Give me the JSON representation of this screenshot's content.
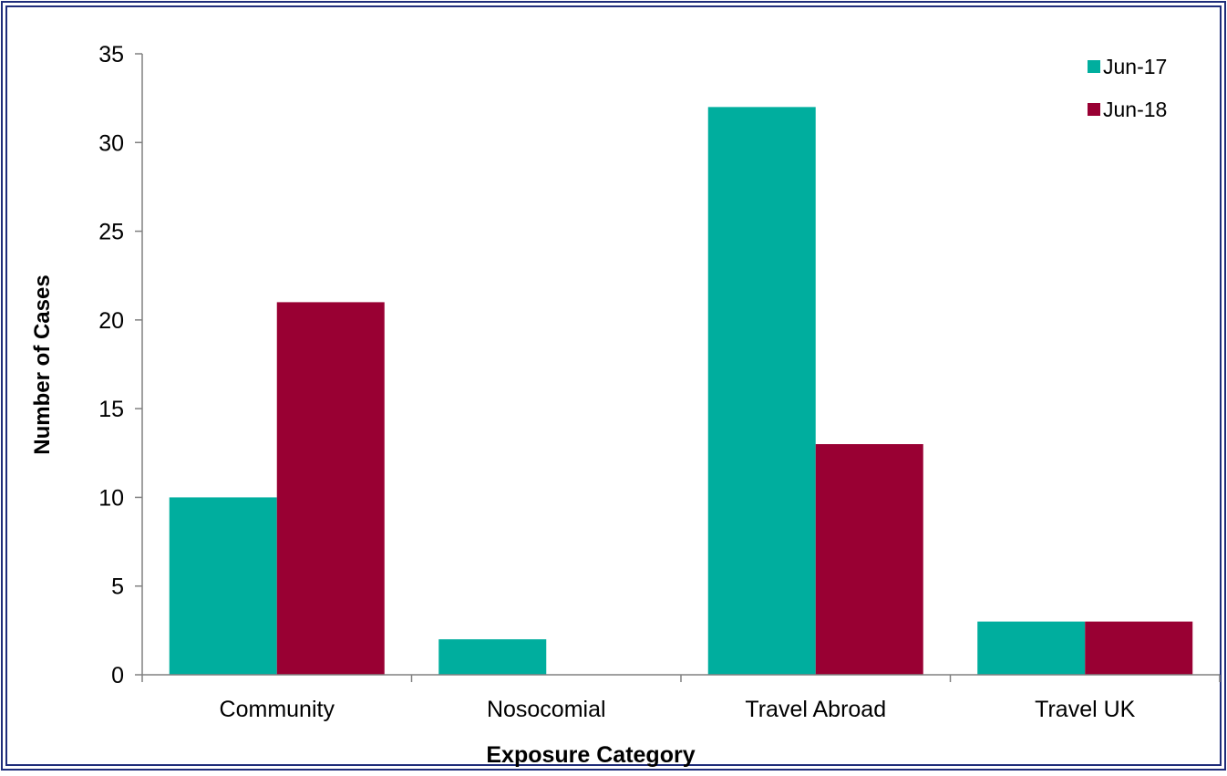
{
  "chart_data": {
    "type": "bar",
    "title": "",
    "xlabel": "Exposure Category",
    "ylabel": "Number of Cases",
    "categories": [
      "Community",
      "Nosocomial",
      "Travel Abroad",
      "Travel UK"
    ],
    "series": [
      {
        "name": "Jun-17",
        "values": [
          10,
          2,
          32,
          3
        ],
        "color": "#00ae9e"
      },
      {
        "name": "Jun-18",
        "values": [
          21,
          0,
          13,
          3
        ],
        "color": "#990033"
      }
    ],
    "ylim": [
      0,
      35
    ],
    "yticks": [
      0,
      5,
      10,
      15,
      20,
      25,
      30,
      35
    ],
    "grid": false,
    "legend": "top-right"
  },
  "colors": {
    "frame": "#1f2d7a",
    "axis": "#808080",
    "text": "#000000"
  }
}
